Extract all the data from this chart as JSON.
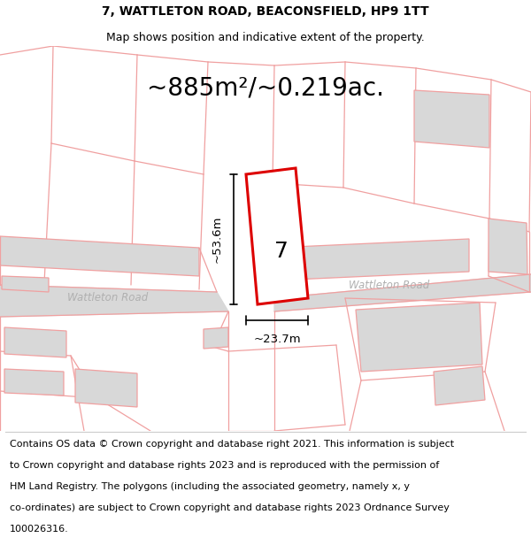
{
  "title_line1": "7, WATTLETON ROAD, BEACONSFIELD, HP9 1TT",
  "title_line2": "Map shows position and indicative extent of the property.",
  "area_text": "~885m²/~0.219ac.",
  "label_7": "7",
  "dim_height": "~53.6m",
  "dim_width": "~23.7m",
  "road_label1": "Wattleton Road",
  "road_label2": "Wattleton Road",
  "footer_lines": [
    "Contains OS data © Crown copyright and database right 2021. This information is subject",
    "to Crown copyright and database rights 2023 and is reproduced with the permission of",
    "HM Land Registry. The polygons (including the associated geometry, namely x, y",
    "co-ordinates) are subject to Crown copyright and database rights 2023 Ordnance Survey",
    "100026316."
  ],
  "map_bg": "#ffffff",
  "road_fill": "#d8d8d8",
  "plot_outline_color": "#dd0000",
  "plot_fill": "#ffffff",
  "map_line_color": "#f0a0a0",
  "title_fontsize": 10,
  "subtitle_fontsize": 9,
  "area_fontsize": 20,
  "label7_fontsize": 18,
  "dim_fontsize": 9.5,
  "road_label_fontsize": 8.5,
  "footer_fontsize": 8.0,
  "title_color": "#000000",
  "road_label_color": "#b0b0b0"
}
